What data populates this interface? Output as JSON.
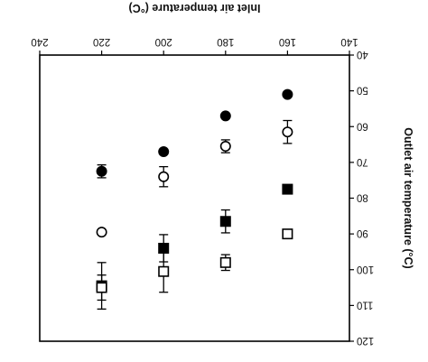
{
  "chart_data": {
    "type": "scatter",
    "orientation": "rotated-180",
    "xlabel": "Inlet air temperature (°C)",
    "ylabel": "Outlet air temperature (°C)",
    "x_ticks": [
      "140",
      "160",
      "180",
      "200",
      "220",
      "240"
    ],
    "y_ticks": [
      "40",
      "50",
      "60",
      "70",
      "80",
      "90",
      "100",
      "110",
      "120"
    ],
    "xlim": [
      140,
      240
    ],
    "ylim": [
      40,
      120
    ],
    "grid": false,
    "legend": "none",
    "series": [
      {
        "marker": "filled-circle",
        "points": [
          {
            "x": 160,
            "y": 51,
            "err": 0
          },
          {
            "x": 180,
            "y": 57,
            "err": 0
          },
          {
            "x": 200,
            "y": 67,
            "err": 0
          },
          {
            "x": 220,
            "y": 72.5,
            "err": 1.8
          }
        ]
      },
      {
        "marker": "open-circle",
        "points": [
          {
            "x": 160,
            "y": 61.5,
            "err": 3.2
          },
          {
            "x": 180,
            "y": 65.5,
            "err": 1.8
          },
          {
            "x": 200,
            "y": 74,
            "err": 2.8
          },
          {
            "x": 220,
            "y": 89.5,
            "err": 0
          }
        ]
      },
      {
        "marker": "filled-square",
        "points": [
          {
            "x": 160,
            "y": 77.5,
            "err": 0
          },
          {
            "x": 180,
            "y": 86.5,
            "err": 3.2
          },
          {
            "x": 200,
            "y": 94,
            "err": 3.8
          },
          {
            "x": 220,
            "y": 104.5,
            "err": 6.5
          }
        ]
      },
      {
        "marker": "open-square",
        "points": [
          {
            "x": 160,
            "y": 90,
            "err": 0
          },
          {
            "x": 180,
            "y": 98,
            "err": 2.2
          },
          {
            "x": 200,
            "y": 100.5,
            "err": 5.8
          },
          {
            "x": 220,
            "y": 105,
            "err": 3.5
          }
        ]
      }
    ],
    "colors": {
      "ink": "#000000",
      "background": "#ffffff"
    }
  }
}
